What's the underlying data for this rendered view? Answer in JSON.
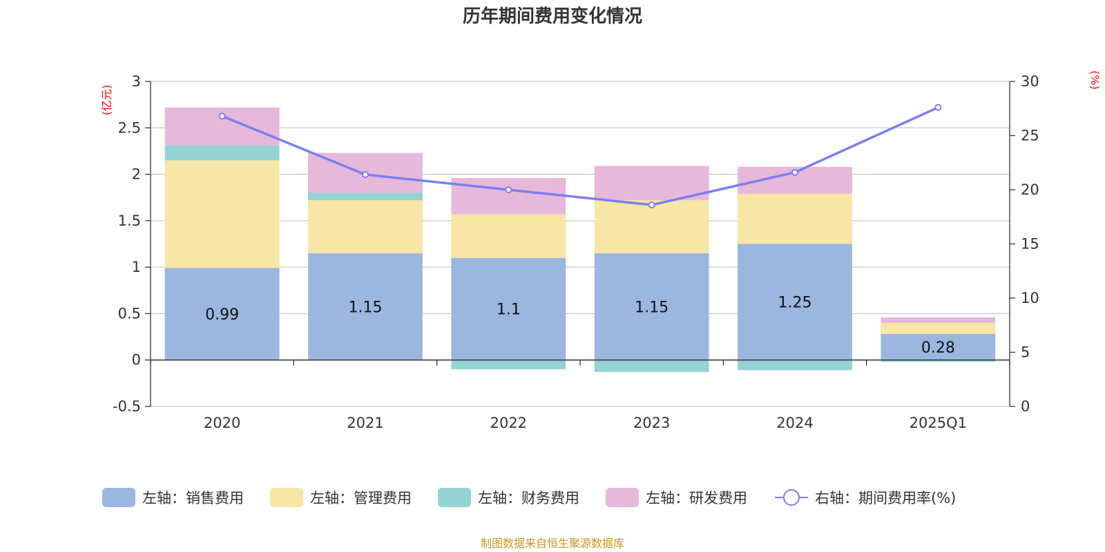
{
  "chart_data": {
    "type": "bar",
    "title": "历年期间费用变化情况",
    "categories": [
      "2020",
      "2021",
      "2022",
      "2023",
      "2024",
      "2025Q1"
    ],
    "left_axis": {
      "unit": "(亿元)",
      "ylim": [
        -0.5,
        3
      ],
      "ticks": [
        "-0.5",
        "0",
        "0.5",
        "1",
        "1.5",
        "2",
        "2.5",
        "3"
      ]
    },
    "right_axis": {
      "unit": "(%)",
      "ylim": [
        0,
        30
      ],
      "ticks": [
        "0",
        "5",
        "10",
        "15",
        "20",
        "25",
        "30"
      ]
    },
    "series": [
      {
        "name": "左轴：销售费用",
        "axis": "left",
        "kind": "bar",
        "color": "#9bb7e0",
        "values": [
          0.99,
          1.15,
          1.1,
          1.15,
          1.25,
          0.28
        ],
        "labels": [
          "0.99",
          "1.15",
          "1.1",
          "1.15",
          "1.25",
          "0.28"
        ]
      },
      {
        "name": "左轴：管理费用",
        "axis": "left",
        "kind": "bar",
        "color": "#f7e6a6",
        "values": [
          1.16,
          0.57,
          0.47,
          0.57,
          0.54,
          0.12
        ]
      },
      {
        "name": "左轴：财务费用",
        "axis": "left",
        "kind": "bar",
        "color": "#94d3d3",
        "values": [
          0.16,
          0.08,
          -0.1,
          -0.13,
          -0.11,
          -0.02
        ]
      },
      {
        "name": "左轴：研发费用",
        "axis": "left",
        "kind": "bar",
        "color": "#e6b8da",
        "values": [
          0.41,
          0.43,
          0.39,
          0.37,
          0.29,
          0.06
        ]
      },
      {
        "name": "右轴：期间费用率(%)",
        "axis": "right",
        "kind": "line",
        "color": "#7b7ff0",
        "values": [
          26.8,
          21.4,
          20.0,
          18.6,
          21.6,
          27.6
        ]
      }
    ],
    "grid": true,
    "legend_position": "bottom"
  },
  "footer": {
    "source": "制图数据来自恒生聚源数据库"
  }
}
